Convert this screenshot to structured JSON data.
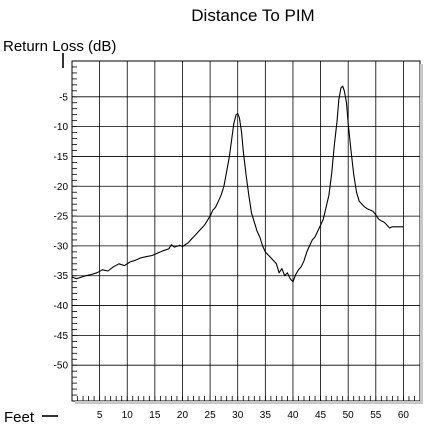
{
  "chart_data": {
    "type": "line",
    "title": "Distance To PIM",
    "ylabel": "Return Loss (dB)",
    "xlabel": "Feet",
    "xlim": [
      0,
      63
    ],
    "ylim": [
      -56,
      1
    ],
    "grid": true,
    "x_ticks": [
      {
        "value": 5,
        "label": "5"
      },
      {
        "value": 10,
        "label": "10"
      },
      {
        "value": 15,
        "label": "15"
      },
      {
        "value": 20,
        "label": "20"
      },
      {
        "value": 25,
        "label": "25"
      },
      {
        "value": 30,
        "label": "30"
      },
      {
        "value": 35,
        "label": "35"
      },
      {
        "value": 40,
        "label": "40"
      },
      {
        "value": 45,
        "label": "45"
      },
      {
        "value": 50,
        "label": "50"
      },
      {
        "value": 55,
        "label": "55"
      },
      {
        "value": 60,
        "label": "60"
      }
    ],
    "y_ticks": [
      {
        "value": -5,
        "label": "-5"
      },
      {
        "value": -10,
        "label": "-10"
      },
      {
        "value": -15,
        "label": "-15"
      },
      {
        "value": -20,
        "label": "-20"
      },
      {
        "value": -25,
        "label": "-25"
      },
      {
        "value": -30,
        "label": "-30"
      },
      {
        "value": -35,
        "label": "-35"
      },
      {
        "value": -40,
        "label": "-40"
      },
      {
        "value": -45,
        "label": "-45"
      },
      {
        "value": -50,
        "label": "-50"
      }
    ],
    "series": [
      {
        "color": "#000000",
        "x": [
          0,
          0.8,
          1.5,
          2.5,
          3.5,
          4.5,
          5.5,
          6.5,
          7.5,
          8.5,
          9.5,
          10.5,
          11.5,
          12.5,
          13.5,
          14.5,
          15.5,
          16.5,
          17.5,
          18,
          18.5,
          19.5,
          20,
          21,
          22,
          23,
          24,
          25,
          25.5,
          26,
          26.5,
          27,
          27.5,
          28,
          28.5,
          29,
          29.3,
          29.7,
          30,
          30.3,
          30.7,
          31,
          31.5,
          32,
          32.5,
          33,
          33.5,
          34,
          34.5,
          35,
          35.5,
          36,
          36.5,
          37,
          37.5,
          38,
          38.5,
          39,
          39.5,
          40,
          40.5,
          41,
          41.5,
          42,
          42.5,
          43,
          43.5,
          44,
          44.5,
          45,
          45.5,
          46,
          46.5,
          47,
          47.5,
          48,
          48.3,
          48.7,
          49,
          49.3,
          49.7,
          50,
          50.5,
          51,
          51.5,
          52,
          52.5,
          53,
          53.5,
          54,
          54.5,
          55,
          55.5,
          56,
          56.5,
          57,
          57.5,
          58,
          59,
          60
        ],
        "y": [
          -35.2,
          -35.5,
          -35.3,
          -35.0,
          -34.8,
          -34.5,
          -34.0,
          -34.2,
          -33.5,
          -33.0,
          -33.3,
          -32.7,
          -32.4,
          -32.0,
          -31.8,
          -31.6,
          -31.2,
          -30.8,
          -30.5,
          -29.8,
          -30.2,
          -29.9,
          -30.1,
          -29.5,
          -28.5,
          -27.5,
          -26.5,
          -25.0,
          -24.0,
          -23.5,
          -22.5,
          -21.5,
          -20.0,
          -17.5,
          -15.0,
          -11.5,
          -9.5,
          -8.0,
          -7.8,
          -8.5,
          -11.0,
          -14.0,
          -18.0,
          -21.5,
          -24.5,
          -26.0,
          -27.5,
          -28.5,
          -30.0,
          -31.0,
          -31.5,
          -32.0,
          -32.5,
          -33.0,
          -34.5,
          -33.8,
          -35.0,
          -34.5,
          -35.5,
          -36.0,
          -34.8,
          -34.0,
          -33.5,
          -32.5,
          -31.0,
          -30.0,
          -29.0,
          -28.5,
          -27.5,
          -26.5,
          -25.5,
          -23.5,
          -21.5,
          -18.0,
          -13.0,
          -9.0,
          -5.5,
          -3.5,
          -3.2,
          -4.0,
          -6.0,
          -9.5,
          -14.0,
          -18.0,
          -21.0,
          -22.5,
          -23.0,
          -23.5,
          -23.8,
          -24.0,
          -24.2,
          -24.8,
          -25.5,
          -25.8,
          -26.0,
          -26.5,
          -27.0,
          -26.8,
          -26.8,
          -26.8
        ]
      }
    ]
  }
}
